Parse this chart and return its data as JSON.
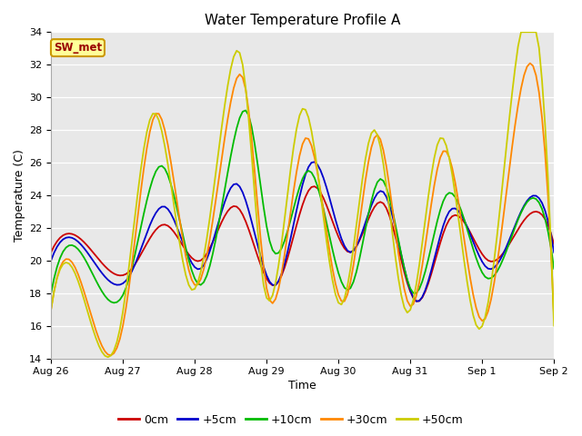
{
  "title": "Water Temperature Profile A",
  "xlabel": "Time",
  "ylabel": "Temperature (C)",
  "ylim": [
    14,
    34
  ],
  "yticks": [
    14,
    16,
    18,
    20,
    22,
    24,
    26,
    28,
    30,
    32,
    34
  ],
  "plot_bg": "#e8e8e8",
  "fig_bg": "#ffffff",
  "grid_color": "#ffffff",
  "series_colors": {
    "0cm": "#cc0000",
    "+5cm": "#0000cc",
    "+10cm": "#00bb00",
    "+30cm": "#ff8800",
    "+50cm": "#cccc00"
  },
  "legend_labels": [
    "0cm",
    "+5cm",
    "+10cm",
    "+30cm",
    "+50cm"
  ],
  "annotation_text": "SW_met",
  "annotation_color": "#990000",
  "annotation_bg": "#ffff99",
  "annotation_border": "#cc9900",
  "xtick_labels": [
    "Aug 26",
    "Aug 27",
    "Aug 28",
    "Aug 29",
    "Aug 30",
    "Aug 31",
    "Sep 1",
    "Sep 2"
  ],
  "xtick_positions": [
    0,
    24,
    48,
    72,
    96,
    120,
    144,
    168
  ],
  "xlim": [
    0,
    168
  ],
  "linewidth": 1.3
}
